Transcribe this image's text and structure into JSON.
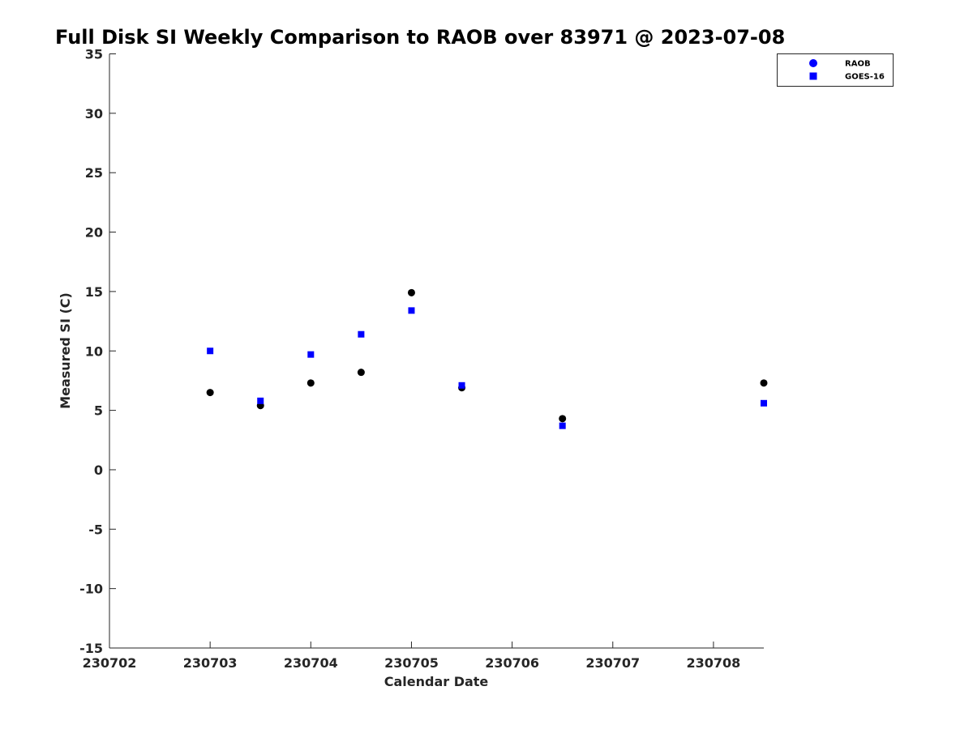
{
  "chart_data": {
    "type": "scatter",
    "title": "Full Disk SI Weekly Comparison to RAOB over 83971 @ 2023-07-08",
    "xlabel": "Calendar Date",
    "ylabel": "Measured SI (C)",
    "xlim": [
      0,
      6.5
    ],
    "ylim": [
      -15,
      35
    ],
    "x_ticks": [
      {
        "value": 0,
        "label": "230702"
      },
      {
        "value": 1,
        "label": "230703"
      },
      {
        "value": 2,
        "label": "230704"
      },
      {
        "value": 3,
        "label": "230705"
      },
      {
        "value": 4,
        "label": "230706"
      },
      {
        "value": 5,
        "label": "230707"
      },
      {
        "value": 6,
        "label": "230708"
      }
    ],
    "y_ticks": [
      {
        "value": 35,
        "label": "35"
      },
      {
        "value": 30,
        "label": "30"
      },
      {
        "value": 25,
        "label": "25"
      },
      {
        "value": 20,
        "label": "20"
      },
      {
        "value": 15,
        "label": "15"
      },
      {
        "value": 10,
        "label": "10"
      },
      {
        "value": 5,
        "label": "5"
      },
      {
        "value": 0,
        "label": "0"
      },
      {
        "value": -5,
        "label": "-5"
      },
      {
        "value": -10,
        "label": "-10"
      },
      {
        "value": -15,
        "label": "-15"
      }
    ],
    "grid": false,
    "legend_position": "top-right",
    "series": [
      {
        "name": "RAOB",
        "marker": "circle",
        "color": "#000000",
        "legend_color": "#0000ff",
        "x": [
          1.0,
          1.5,
          2.0,
          2.5,
          3.0,
          3.5,
          4.5,
          6.5
        ],
        "y": [
          6.5,
          5.4,
          7.3,
          8.2,
          14.9,
          6.9,
          4.3,
          7.3
        ]
      },
      {
        "name": "GOES-16",
        "marker": "square",
        "color": "#0000ff",
        "legend_color": "#0000ff",
        "x": [
          1.0,
          1.5,
          2.0,
          2.5,
          3.0,
          3.5,
          4.5,
          6.5
        ],
        "y": [
          10.0,
          5.8,
          9.7,
          11.4,
          13.4,
          7.1,
          3.7,
          5.6
        ]
      }
    ]
  }
}
